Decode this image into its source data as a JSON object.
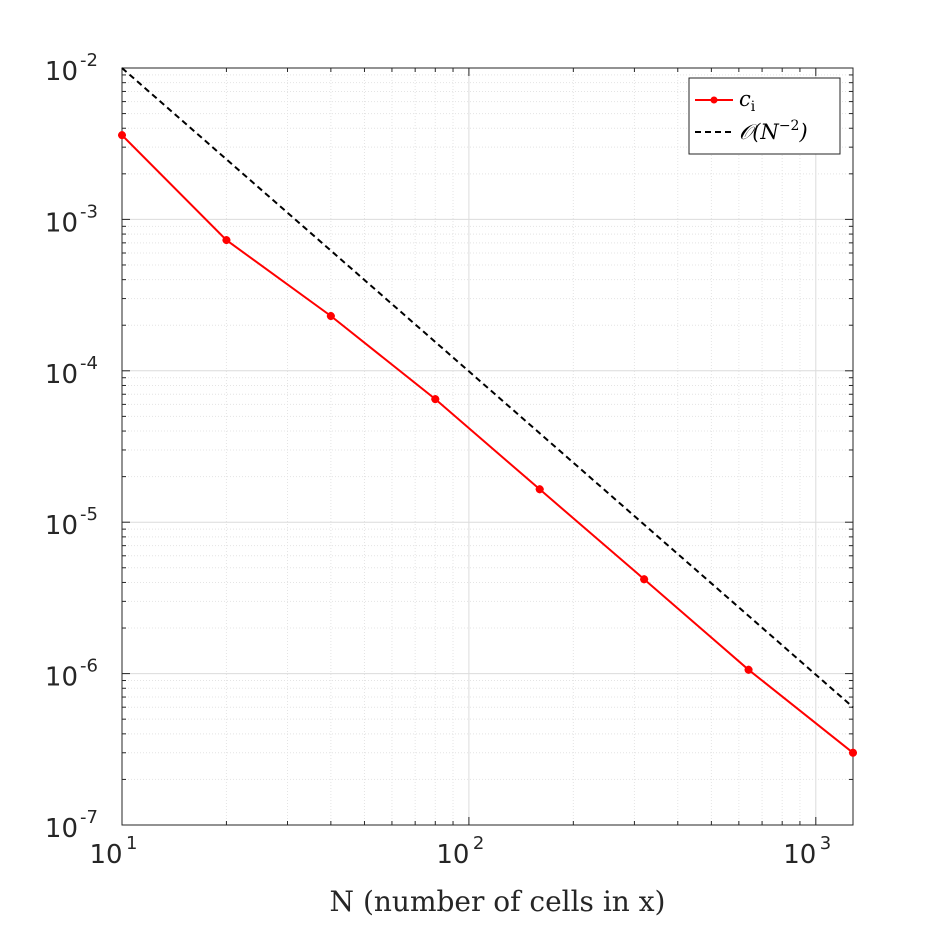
{
  "chart_data": {
    "type": "line",
    "title": "",
    "xlabel": "N (number of cells in x)",
    "ylabel": "",
    "xscale": "log",
    "yscale": "log",
    "xlim": [
      10,
      1280
    ],
    "ylim": [
      1e-07,
      0.01
    ],
    "grid": true,
    "minor_grid": true,
    "legend_position": "top-right",
    "x_ticks": [
      {
        "base": "10",
        "exp": "1",
        "value": 10
      },
      {
        "base": "10",
        "exp": "2",
        "value": 100
      },
      {
        "base": "10",
        "exp": "3",
        "value": 1000
      }
    ],
    "y_ticks": [
      {
        "base": "10",
        "exp": "-2",
        "value": 0.01
      },
      {
        "base": "10",
        "exp": "-3",
        "value": 0.001
      },
      {
        "base": "10",
        "exp": "-4",
        "value": 0.0001
      },
      {
        "base": "10",
        "exp": "-5",
        "value": 1e-05
      },
      {
        "base": "10",
        "exp": "-6",
        "value": 1e-06
      },
      {
        "base": "10",
        "exp": "-7",
        "value": 1e-07
      }
    ],
    "series": [
      {
        "name": "c_i",
        "color": "#ff0000",
        "style": "solid",
        "marker": "asterisk",
        "x": [
          10,
          20,
          40,
          80,
          160,
          320,
          640,
          1280
        ],
        "y": [
          0.0036,
          0.00073,
          0.00023,
          6.5e-05,
          1.65e-05,
          4.2e-06,
          1.06e-06,
          3e-07
        ]
      },
      {
        "name": "O(N^-2)",
        "color": "#000000",
        "style": "dashed",
        "marker": "none",
        "x": [
          10,
          1280
        ],
        "y": [
          0.01,
          6e-07
        ]
      }
    ],
    "legend": [
      {
        "label_main": "c",
        "label_sub": "i"
      },
      {
        "label_main": "𝒪(N",
        "label_sup": "−2",
        "label_end": ")"
      }
    ]
  }
}
